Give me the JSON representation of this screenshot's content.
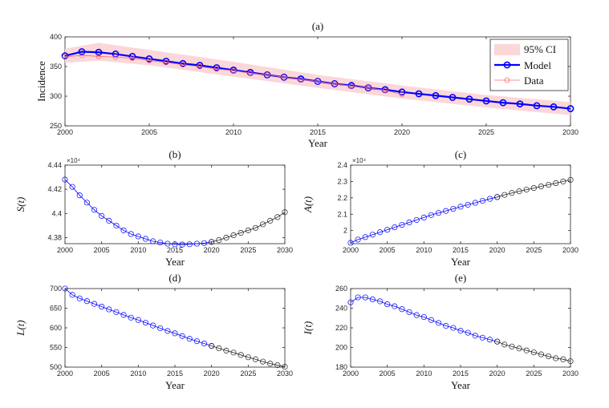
{
  "chart_data": [
    {
      "id": "a",
      "type": "line",
      "title": "(a)",
      "xlabel": "Year",
      "ylabel": "Incidence",
      "xlim": [
        2000,
        2030
      ],
      "ylim": [
        250,
        400
      ],
      "xticks": [
        "2000",
        "2005",
        "2010",
        "2015",
        "2020",
        "2025",
        "2030"
      ],
      "yticks": [
        "250",
        "300",
        "350",
        "400"
      ],
      "legend": [
        "95% CI",
        "Model",
        "Data"
      ],
      "legend_position": "top-right",
      "ci": {
        "x": [
          2000,
          2002,
          2005,
          2010,
          2015,
          2020,
          2025,
          2030
        ],
        "lower": [
          356,
          360,
          352,
          333,
          314,
          296,
          281,
          268
        ],
        "upper": [
          380,
          390,
          378,
          358,
          336,
          318,
          302,
          290
        ]
      },
      "series": [
        {
          "name": "Model",
          "color": "#0000ff",
          "x": [
            2000,
            2001,
            2002,
            2003,
            2004,
            2005,
            2006,
            2007,
            2008,
            2009,
            2010,
            2011,
            2012,
            2013,
            2014,
            2015,
            2016,
            2017,
            2018,
            2019,
            2020,
            2021,
            2022,
            2023,
            2024,
            2025,
            2026,
            2027,
            2028,
            2029,
            2030
          ],
          "values": [
            368,
            375,
            374,
            371,
            367,
            363,
            359,
            355,
            352,
            348,
            344,
            340,
            336,
            332,
            329,
            325,
            321,
            318,
            314,
            311,
            307,
            304,
            301,
            298,
            295,
            292,
            289,
            287,
            284,
            282,
            279
          ]
        },
        {
          "name": "Data",
          "color": "#ff6b6b",
          "x": [
            2000,
            2001,
            2002,
            2003,
            2004,
            2005,
            2006,
            2007,
            2008,
            2009,
            2010,
            2011,
            2012,
            2013,
            2014,
            2015,
            2016,
            2017,
            2018,
            2019,
            2020
          ],
          "values": [
            366,
            369,
            367,
            366,
            364,
            360,
            357,
            353,
            350,
            346,
            343,
            339,
            336,
            332,
            328,
            325,
            321,
            317,
            314,
            310,
            303
          ]
        }
      ]
    },
    {
      "id": "b",
      "type": "line",
      "title": "(b)",
      "xlabel": "Year",
      "ylabel": "S(t)",
      "exponent": "×10⁴",
      "xlim": [
        2000,
        2030
      ],
      "ylim": [
        4.375,
        4.44
      ],
      "xticks": [
        "2000",
        "2005",
        "2010",
        "2015",
        "2020",
        "2025",
        "2030"
      ],
      "yticks": [
        "4.38",
        "4.4",
        "4.42",
        "4.44"
      ],
      "series": [
        {
          "name": "S fitted",
          "color": "#0000ff",
          "x": [
            2000,
            2001,
            2002,
            2003,
            2004,
            2005,
            2006,
            2007,
            2008,
            2009,
            2010,
            2011,
            2012,
            2013,
            2014,
            2015,
            2016,
            2017,
            2018,
            2019,
            2020
          ],
          "values": [
            4.428,
            4.422,
            4.415,
            4.409,
            4.403,
            4.398,
            4.394,
            4.39,
            4.386,
            4.383,
            4.381,
            4.379,
            4.377,
            4.376,
            4.375,
            4.3745,
            4.3743,
            4.3745,
            4.375,
            4.3755,
            4.3765
          ]
        },
        {
          "name": "S projected",
          "color": "#222222",
          "x": [
            2020,
            2021,
            2022,
            2023,
            2024,
            2025,
            2026,
            2027,
            2028,
            2029,
            2030
          ],
          "values": [
            4.3765,
            4.378,
            4.38,
            4.382,
            4.384,
            4.386,
            4.388,
            4.391,
            4.394,
            4.397,
            4.401
          ]
        }
      ]
    },
    {
      "id": "c",
      "type": "line",
      "title": "(c)",
      "xlabel": "Year",
      "ylabel": "A(t)",
      "exponent": "×10⁴",
      "xlim": [
        2000,
        2030
      ],
      "ylim": [
        1.92,
        2.4
      ],
      "xticks": [
        "2000",
        "2005",
        "2010",
        "2015",
        "2020",
        "2025",
        "2030"
      ],
      "yticks": [
        "2",
        "2.1",
        "2.2",
        "2.3",
        "2.4"
      ],
      "series": [
        {
          "name": "A fitted",
          "color": "#0000ff",
          "x": [
            2000,
            2001,
            2002,
            2003,
            2004,
            2005,
            2006,
            2007,
            2008,
            2009,
            2010,
            2011,
            2012,
            2013,
            2014,
            2015,
            2016,
            2017,
            2018,
            2019,
            2020
          ],
          "values": [
            1.925,
            1.945,
            1.96,
            1.975,
            1.99,
            2.005,
            2.02,
            2.035,
            2.05,
            2.065,
            2.08,
            2.095,
            2.108,
            2.12,
            2.133,
            2.146,
            2.158,
            2.17,
            2.182,
            2.194,
            2.205
          ]
        },
        {
          "name": "A projected",
          "color": "#222222",
          "x": [
            2020,
            2021,
            2022,
            2023,
            2024,
            2025,
            2026,
            2027,
            2028,
            2029,
            2030
          ],
          "values": [
            2.205,
            2.218,
            2.23,
            2.24,
            2.25,
            2.26,
            2.27,
            2.28,
            2.29,
            2.3,
            2.31
          ]
        }
      ]
    },
    {
      "id": "d",
      "type": "line",
      "title": "(d)",
      "xlabel": "Year",
      "ylabel": "L(t)",
      "xlim": [
        2000,
        2030
      ],
      "ylim": [
        500,
        700
      ],
      "xticks": [
        "2000",
        "2005",
        "2010",
        "2015",
        "2020",
        "2025",
        "2030"
      ],
      "yticks": [
        "500",
        "550",
        "600",
        "650",
        "700"
      ],
      "series": [
        {
          "name": "L fitted",
          "color": "#0000ff",
          "x": [
            2000,
            2001,
            2002,
            2003,
            2004,
            2005,
            2006,
            2007,
            2008,
            2009,
            2010,
            2011,
            2012,
            2013,
            2014,
            2015,
            2016,
            2017,
            2018,
            2019,
            2020
          ],
          "values": [
            700,
            684,
            675,
            668,
            661,
            654,
            647,
            640,
            633,
            626,
            620,
            613,
            606,
            599,
            592,
            586,
            579,
            572,
            566,
            560,
            554
          ]
        },
        {
          "name": "L projected",
          "color": "#222222",
          "x": [
            2020,
            2021,
            2022,
            2023,
            2024,
            2025,
            2026,
            2027,
            2028,
            2029,
            2030
          ],
          "values": [
            554,
            548,
            542,
            537,
            531,
            525,
            520,
            514,
            509,
            505,
            501
          ]
        }
      ]
    },
    {
      "id": "e",
      "type": "line",
      "title": "(e)",
      "xlabel": "Year",
      "ylabel": "I(t)",
      "xlim": [
        2000,
        2030
      ],
      "ylim": [
        180,
        260
      ],
      "xticks": [
        "2000",
        "2005",
        "2010",
        "2015",
        "2020",
        "2025",
        "2030"
      ],
      "yticks": [
        "180",
        "200",
        "220",
        "240",
        "260"
      ],
      "series": [
        {
          "name": "I fitted",
          "color": "#0000ff",
          "x": [
            2000,
            2001,
            2002,
            2003,
            2004,
            2005,
            2006,
            2007,
            2008,
            2009,
            2010,
            2011,
            2012,
            2013,
            2014,
            2015,
            2016,
            2017,
            2018,
            2019,
            2020
          ],
          "values": [
            246,
            251,
            251,
            249,
            247,
            244,
            242,
            239,
            236,
            233,
            231,
            228,
            225,
            222,
            220,
            217,
            215,
            212,
            210,
            208,
            206
          ]
        },
        {
          "name": "I projected",
          "color": "#222222",
          "x": [
            2020,
            2021,
            2022,
            2023,
            2024,
            2025,
            2026,
            2027,
            2028,
            2029,
            2030
          ],
          "values": [
            206,
            203,
            201,
            199,
            197,
            195,
            193,
            191,
            189,
            188,
            186
          ]
        }
      ]
    }
  ]
}
